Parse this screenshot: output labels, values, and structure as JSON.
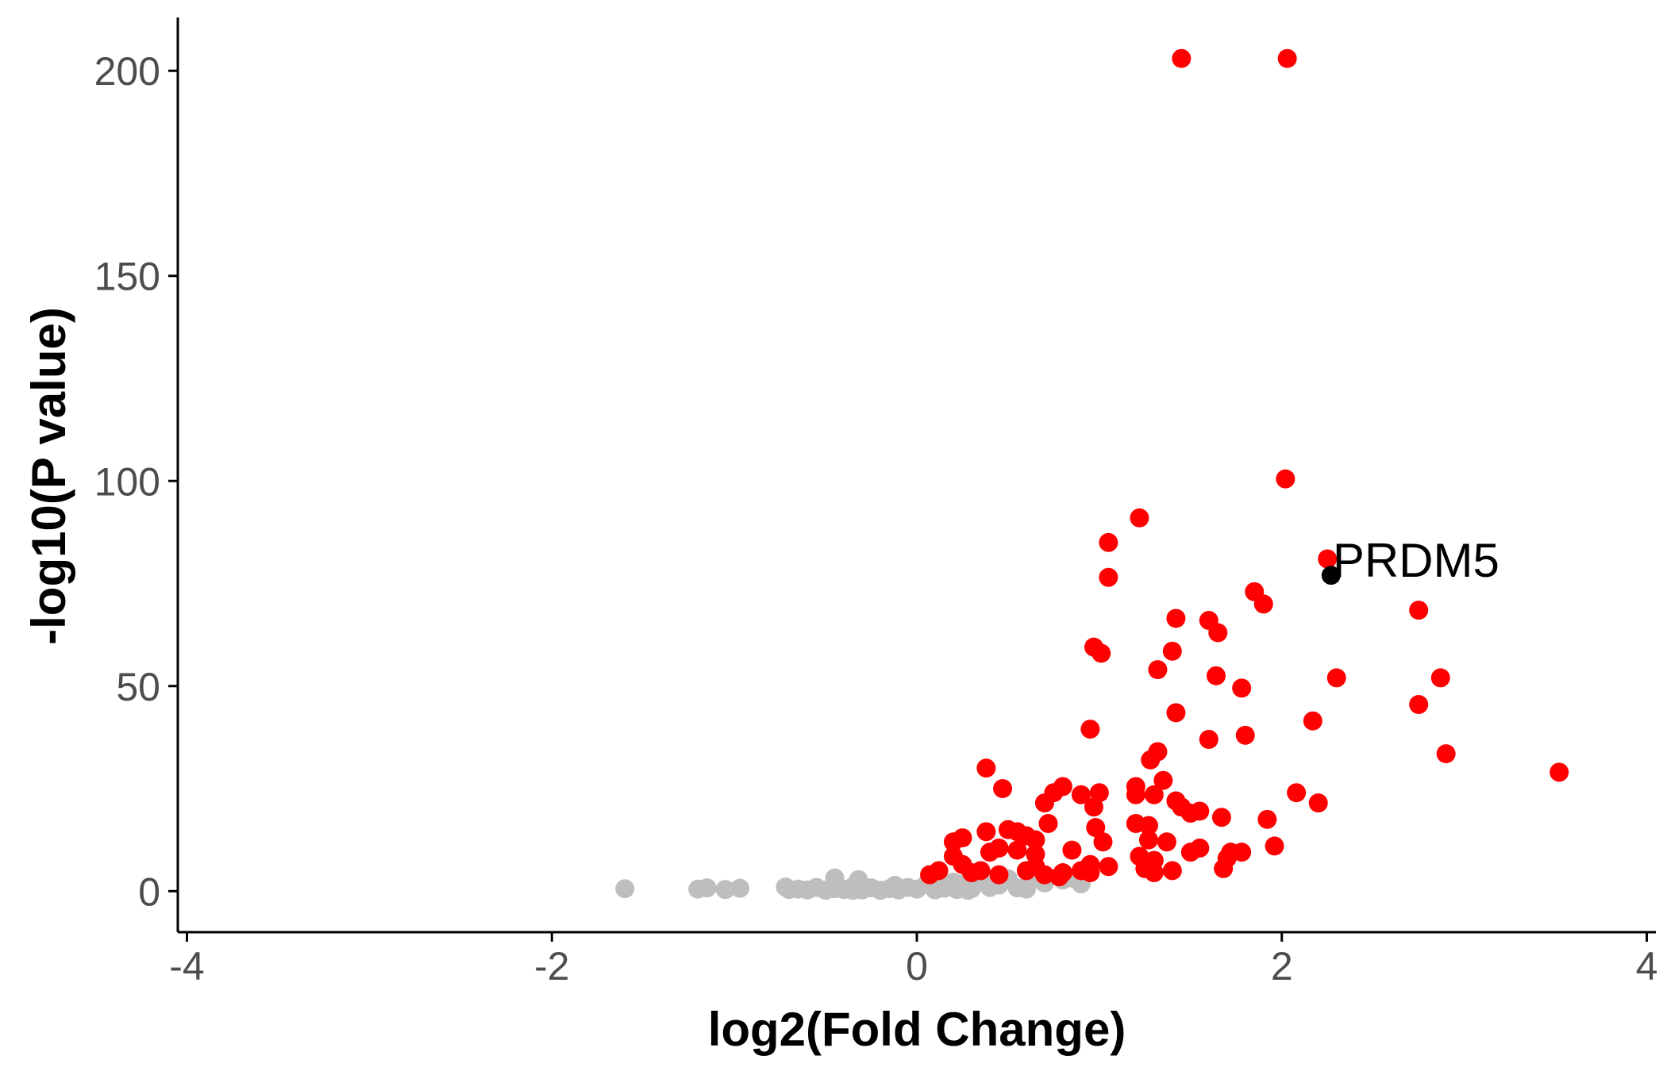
{
  "chart_data": {
    "type": "scatter",
    "title": "",
    "xlabel": "log2(Fold Change)",
    "ylabel": "-log10(P value)",
    "xlim": [
      -4.05,
      4.05
    ],
    "ylim": [
      -10,
      213
    ],
    "xticks": [
      -4,
      -2,
      0,
      2,
      4
    ],
    "yticks": [
      0,
      50,
      100,
      150,
      200
    ],
    "xtick_labels": [
      "-4",
      "-2",
      "0",
      "2",
      "4"
    ],
    "ytick_labels": [
      "0",
      "50",
      "100",
      "150",
      "200"
    ],
    "grid": false,
    "legend": "none",
    "colors": {
      "significant": "#ff0000",
      "not_significant": "#bebebe",
      "highlight": "#000000",
      "axis": "#000000",
      "tick_text": "#4d4d4d"
    },
    "series": [
      {
        "group": "not_significant",
        "points": [
          [
            -1.6,
            0.6
          ],
          [
            -1.2,
            0.5
          ],
          [
            -1.15,
            0.8
          ],
          [
            -1.05,
            0.4
          ],
          [
            -0.97,
            0.7
          ],
          [
            -0.72,
            1.0
          ],
          [
            -0.65,
            0.5
          ],
          [
            -0.6,
            0.3
          ],
          [
            -0.55,
            0.9
          ],
          [
            -0.5,
            0.2
          ],
          [
            -0.45,
            0.6
          ],
          [
            -0.45,
            3.2
          ],
          [
            -0.4,
            0.4
          ],
          [
            -0.35,
            1.1
          ],
          [
            -0.32,
            2.8
          ],
          [
            -0.3,
            0.3
          ],
          [
            -0.25,
            0.8
          ],
          [
            -0.2,
            0.2
          ],
          [
            -0.15,
            0.6
          ],
          [
            -0.12,
            1.4
          ],
          [
            -0.1,
            0.3
          ],
          [
            -0.05,
            0.9
          ],
          [
            0.0,
            0.5
          ],
          [
            0.05,
            1.6
          ],
          [
            0.1,
            0.3
          ],
          [
            0.12,
            1.2
          ],
          [
            0.15,
            0.7
          ],
          [
            0.2,
            2.2
          ],
          [
            0.22,
            0.4
          ],
          [
            0.25,
            1.8
          ],
          [
            0.3,
            0.6
          ],
          [
            0.35,
            2.6
          ],
          [
            0.4,
            0.9
          ],
          [
            0.45,
            1.5
          ],
          [
            0.5,
            3.0
          ],
          [
            0.55,
            0.8
          ],
          [
            0.6,
            0.5
          ],
          [
            0.62,
            2.5
          ],
          [
            0.7,
            2.0
          ],
          [
            0.8,
            2.7
          ],
          [
            0.85,
            3.2
          ],
          [
            0.9,
            1.8
          ],
          [
            -0.7,
            0.4
          ],
          [
            -0.35,
            0.2
          ],
          [
            0.28,
            0.2
          ]
        ]
      },
      {
        "group": "significant",
        "points": [
          [
            1.45,
            203
          ],
          [
            2.03,
            203
          ],
          [
            2.02,
            100.5
          ],
          [
            1.22,
            91
          ],
          [
            1.05,
            85
          ],
          [
            2.25,
            81
          ],
          [
            1.05,
            76.5
          ],
          [
            1.85,
            73
          ],
          [
            1.9,
            70
          ],
          [
            2.75,
            68.5
          ],
          [
            1.6,
            66
          ],
          [
            1.42,
            66.5
          ],
          [
            1.65,
            63
          ],
          [
            0.97,
            59.5
          ],
          [
            1.01,
            58
          ],
          [
            1.4,
            58.5
          ],
          [
            1.32,
            54
          ],
          [
            1.64,
            52.5
          ],
          [
            2.3,
            52
          ],
          [
            2.87,
            52
          ],
          [
            1.78,
            49.5
          ],
          [
            2.75,
            45.5
          ],
          [
            1.42,
            43.5
          ],
          [
            2.17,
            41.5
          ],
          [
            0.95,
            39.5
          ],
          [
            1.8,
            38
          ],
          [
            1.6,
            37
          ],
          [
            1.32,
            34
          ],
          [
            1.28,
            32
          ],
          [
            2.9,
            33.5
          ],
          [
            0.38,
            30
          ],
          [
            3.52,
            29
          ],
          [
            1.35,
            27
          ],
          [
            1.2,
            25.5
          ],
          [
            0.47,
            25
          ],
          [
            0.8,
            25.5
          ],
          [
            1.0,
            24
          ],
          [
            1.2,
            23.5
          ],
          [
            1.3,
            23.5
          ],
          [
            0.75,
            24
          ],
          [
            0.9,
            23.5
          ],
          [
            2.08,
            24
          ],
          [
            1.42,
            22
          ],
          [
            2.2,
            21.5
          ],
          [
            0.7,
            21.5
          ],
          [
            0.97,
            20.5
          ],
          [
            1.45,
            20.5
          ],
          [
            1.55,
            19.5
          ],
          [
            1.5,
            19
          ],
          [
            1.67,
            18
          ],
          [
            1.92,
            17.5
          ],
          [
            1.2,
            16.5
          ],
          [
            1.27,
            16
          ],
          [
            0.72,
            16.5
          ],
          [
            0.98,
            15.5
          ],
          [
            0.5,
            15
          ],
          [
            0.55,
            14.5
          ],
          [
            0.38,
            14.5
          ],
          [
            0.6,
            13.5
          ],
          [
            0.65,
            12.5
          ],
          [
            0.25,
            13
          ],
          [
            0.2,
            12
          ],
          [
            1.27,
            12.5
          ],
          [
            1.37,
            12
          ],
          [
            1.96,
            11
          ],
          [
            0.45,
            10.5
          ],
          [
            0.55,
            10
          ],
          [
            0.4,
            9.5
          ],
          [
            0.65,
            9
          ],
          [
            0.85,
            10
          ],
          [
            1.02,
            12
          ],
          [
            1.55,
            10.5
          ],
          [
            1.5,
            9.5
          ],
          [
            1.72,
            9.5
          ],
          [
            1.78,
            9.5
          ],
          [
            1.7,
            8
          ],
          [
            0.2,
            8.5
          ],
          [
            1.22,
            8.5
          ],
          [
            1.3,
            7.5
          ],
          [
            0.25,
            6.5
          ],
          [
            0.65,
            6
          ],
          [
            0.6,
            5
          ],
          [
            0.7,
            4
          ],
          [
            0.8,
            4.5
          ],
          [
            0.9,
            5
          ],
          [
            0.95,
            6.5
          ],
          [
            1.05,
            6
          ],
          [
            0.3,
            4.5
          ],
          [
            0.35,
            5
          ],
          [
            0.45,
            4
          ],
          [
            0.12,
            5
          ],
          [
            0.07,
            4
          ],
          [
            1.25,
            5.5
          ],
          [
            1.3,
            4.5
          ],
          [
            1.4,
            5
          ],
          [
            1.68,
            5.5
          ],
          [
            0.95,
            4.5
          ],
          [
            0.78,
            3.5
          ]
        ]
      },
      {
        "group": "highlight",
        "points": [
          [
            2.27,
            77
          ]
        ]
      }
    ],
    "annotations": [
      {
        "label": "PRDM5",
        "x": 2.27,
        "y": 77
      }
    ]
  }
}
